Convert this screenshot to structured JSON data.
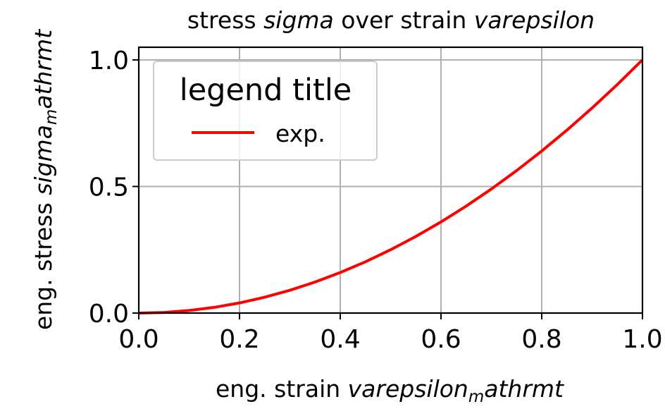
{
  "chart_data": {
    "type": "line",
    "title": {
      "prefix": "stress ",
      "sigma": "sigma",
      "middle": " over strain ",
      "varepsilon": "varepsilon"
    },
    "xlabel": {
      "prefix": "eng. strain ",
      "symbol": "varepsilon",
      "subscript": "m",
      "suffix": "athrmt"
    },
    "ylabel": {
      "prefix": "eng. stress ",
      "symbol": "sigma",
      "subscript": "m",
      "suffix": "athrmt"
    },
    "xlim": [
      0.0,
      1.0
    ],
    "ylim": [
      0.0,
      1.05
    ],
    "x_ticks": [
      0.0,
      0.2,
      0.4,
      0.6,
      0.8,
      1.0
    ],
    "x_tick_labels": [
      "0.0",
      "0.2",
      "0.4",
      "0.6",
      "0.8",
      "1.0"
    ],
    "y_ticks": [
      0.0,
      0.5,
      1.0
    ],
    "y_tick_labels": [
      "0.0",
      "0.5",
      "1.0"
    ],
    "grid": true,
    "legend": {
      "title": "legend title",
      "placement": "top-left"
    },
    "series": [
      {
        "name": "exp.",
        "color": "#ff0000",
        "x": [
          0.0,
          0.05,
          0.1,
          0.15,
          0.2,
          0.25,
          0.3,
          0.35,
          0.4,
          0.45,
          0.5,
          0.55,
          0.6,
          0.65,
          0.7,
          0.75,
          0.8,
          0.85,
          0.9,
          0.95,
          1.0
        ],
        "y": [
          0.0,
          0.0025,
          0.01,
          0.0225,
          0.04,
          0.0625,
          0.09,
          0.1225,
          0.16,
          0.2025,
          0.25,
          0.3025,
          0.36,
          0.4225,
          0.49,
          0.5625,
          0.64,
          0.7225,
          0.81,
          0.9025,
          1.0
        ]
      }
    ]
  }
}
